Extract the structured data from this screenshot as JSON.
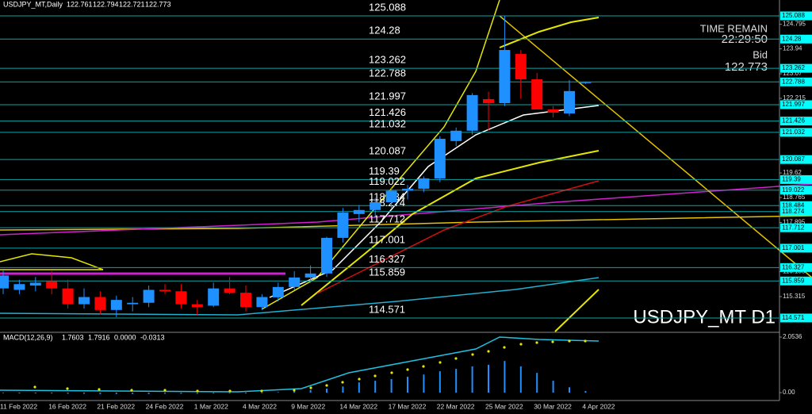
{
  "chart_data": {
    "type": "candlestick",
    "title": "USDJPY_MT,Daily",
    "categories": [
      "11 Feb 2022",
      null,
      null,
      "16 Feb 2022",
      null,
      null,
      "21 Feb 2022",
      null,
      null,
      "24 Feb 2022",
      null,
      null,
      "1 Mar 2022",
      null,
      null,
      "4 Mar 2022",
      null,
      null,
      "9 Mar 2022",
      null,
      null,
      "14 Mar 2022",
      null,
      null,
      "17 Mar 2022",
      null,
      null,
      "22 Mar 2022",
      null,
      null,
      "25 Mar 2022",
      null,
      null,
      "30 Mar 2022",
      null,
      null,
      "4 Apr 2022"
    ],
    "open": [
      115.6,
      115.55,
      115.7,
      115.85,
      115.6,
      115.05,
      115.3,
      114.85,
      115.05,
      115.1,
      115.55,
      115.5,
      115.05,
      115.0,
      115.6,
      115.45,
      114.95,
      115.29,
      115.65,
      115.98,
      116.12,
      117.36,
      118.19,
      118.33,
      118.6,
      119.0,
      119.07,
      119.43,
      120.73,
      121.09,
      122.19,
      122.05,
      123.76,
      122.88,
      121.83,
      121.69,
      122.761
    ],
    "high": [
      116.25,
      115.9,
      116.0,
      116.2,
      115.9,
      115.6,
      115.5,
      115.35,
      115.3,
      115.7,
      115.75,
      115.75,
      115.2,
      115.8,
      116.0,
      115.7,
      115.4,
      115.8,
      116.2,
      116.4,
      117.4,
      118.4,
      118.5,
      118.75,
      119.1,
      119.2,
      119.5,
      120.9,
      121.2,
      122.4,
      122.45,
      125.09,
      123.9,
      123.1,
      121.95,
      122.85,
      122.794
    ],
    "low": [
      115.4,
      115.4,
      115.5,
      115.4,
      114.9,
      114.9,
      114.7,
      114.6,
      114.8,
      114.95,
      115.4,
      114.9,
      114.65,
      114.95,
      115.4,
      114.8,
      114.85,
      115.15,
      115.55,
      115.8,
      116.0,
      117.2,
      117.9,
      118.1,
      118.4,
      118.7,
      118.95,
      119.3,
      120.55,
      120.95,
      121.1,
      121.95,
      122.2,
      121.9,
      121.55,
      121.6,
      122.721
    ],
    "close": [
      116.05,
      115.75,
      115.8,
      115.6,
      115.05,
      115.3,
      114.85,
      115.2,
      115.1,
      115.55,
      115.5,
      115.05,
      114.95,
      115.6,
      115.45,
      114.95,
      115.3,
      115.65,
      115.98,
      116.12,
      117.36,
      118.24,
      118.33,
      118.6,
      119.0,
      119.07,
      119.43,
      120.81,
      121.09,
      122.33,
      122.05,
      123.9,
      122.88,
      121.83,
      121.72,
      122.47,
      122.773
    ],
    "up_color": "#1e90ff",
    "down_color": "#ff0000",
    "ylim": [
      114.1,
      125.64
    ],
    "yticks": [
      124.795,
      123.94,
      123.07,
      122.215,
      120.95,
      119.62,
      118.765,
      117.895,
      116.185,
      115.315
    ],
    "levels": [
      125.088,
      124.28,
      123.262,
      122.788,
      121.997,
      121.426,
      121.032,
      120.087,
      119.39,
      119.022,
      118.484,
      118.274,
      117.712,
      117.001,
      116.327,
      115.859,
      114.571
    ],
    "level_color": "#0fa3a3",
    "time_remain_label": "TIME REMAIN",
    "time_remain": "22:29:50",
    "bid_label": "Bid",
    "watermark": "USDJPY_MT D1",
    "macd": {
      "label": "MACD(12,26,9)",
      "readings": [
        1.7603,
        1.7916,
        {
          "value": 0,
          "label": "0.0000"
        },
        -0.0313
      ],
      "ylim": [
        -0.29,
        2.2
      ],
      "yticks": [
        2.0536,
        {
          "value": 0,
          "label": "0.00"
        }
      ],
      "color": "#1e90ff",
      "histogram": [
        -0.02,
        -0.03,
        -0.03,
        -0.03,
        -0.04,
        -0.04,
        -0.05,
        -0.05,
        -0.05,
        -0.05,
        -0.04,
        -0.04,
        -0.04,
        -0.03,
        -0.03,
        -0.03,
        -0.02,
        0.02,
        0.06,
        0.1,
        0.15,
        0.23,
        0.38,
        0.44,
        0.5,
        0.59,
        0.67,
        0.79,
        0.88,
        0.97,
        1.03,
        1.17,
        0.97,
        0.73,
        0.44,
        0.2,
        0.06
      ]
    }
  }
}
